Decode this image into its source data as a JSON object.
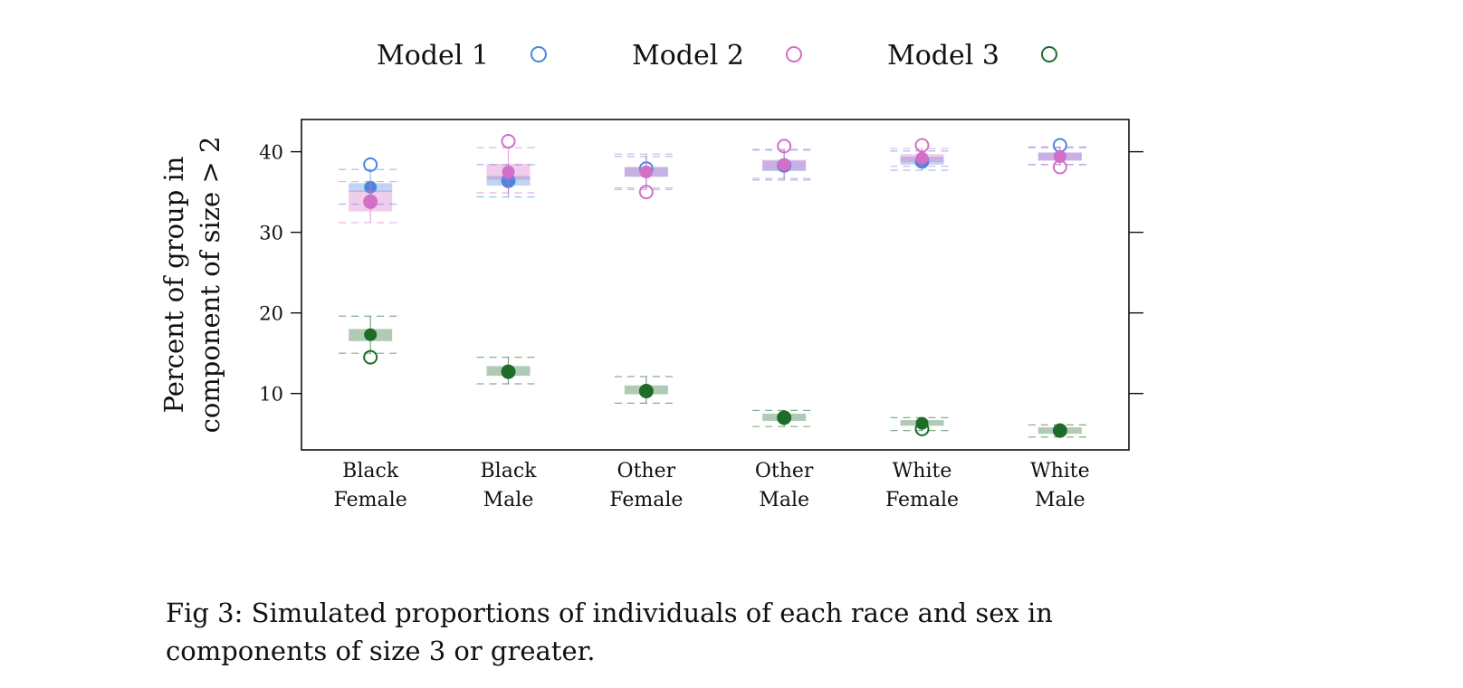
{
  "chart_data": {
    "type": "scatter",
    "ylabel_lines": [
      "Percent of group in",
      "component of size > 2"
    ],
    "xlabel": "",
    "ylim": [
      3,
      44
    ],
    "yticks": [
      10,
      20,
      30,
      40
    ],
    "grid": false,
    "legend_position": "top",
    "categories": [
      [
        "Black",
        "Female"
      ],
      [
        "Black",
        "Male"
      ],
      [
        "Other",
        "Female"
      ],
      [
        "Other",
        "Male"
      ],
      [
        "White",
        "Female"
      ],
      [
        "White",
        "Male"
      ]
    ],
    "series": [
      {
        "name": "Model 1",
        "color": "#4a86e0",
        "observed": [
          38.4,
          36.4,
          37.9,
          38.3,
          38.8,
          40.8
        ],
        "simulated_mean": [
          35.6,
          36.4,
          37.5,
          38.3,
          38.9,
          39.4
        ],
        "box_low": [
          35.0,
          35.8,
          36.9,
          37.6,
          38.4,
          38.9
        ],
        "box_high": [
          36.1,
          37.0,
          38.1,
          38.9,
          39.4,
          39.9
        ],
        "ci_low": [
          33.5,
          34.4,
          35.5,
          36.5,
          37.7,
          38.4
        ],
        "ci_high": [
          37.8,
          38.4,
          39.4,
          40.2,
          40.1,
          40.5
        ]
      },
      {
        "name": "Model 2",
        "color": "#d36fc6",
        "observed": [
          33.8,
          41.3,
          35.0,
          40.7,
          40.8,
          38.1
        ],
        "simulated_mean": [
          33.8,
          37.5,
          37.5,
          38.4,
          39.2,
          39.4
        ],
        "box_low": [
          32.6,
          36.5,
          36.9,
          37.7,
          38.7,
          38.9
        ],
        "box_high": [
          35.2,
          38.5,
          38.1,
          39.0,
          39.7,
          39.9
        ],
        "ci_low": [
          31.2,
          34.9,
          35.3,
          36.7,
          38.2,
          38.4
        ],
        "ci_high": [
          36.3,
          40.5,
          39.7,
          40.3,
          40.4,
          40.6
        ]
      },
      {
        "name": "Model 3",
        "color": "#1e6b2a",
        "observed": [
          14.5,
          12.7,
          10.3,
          7.0,
          5.6,
          5.4
        ],
        "simulated_mean": [
          17.3,
          12.7,
          10.4,
          7.0,
          6.3,
          5.4
        ],
        "box_low": [
          16.5,
          12.2,
          9.9,
          6.6,
          6.0,
          5.0
        ],
        "box_high": [
          18.0,
          13.4,
          11.0,
          7.5,
          6.7,
          5.8
        ],
        "ci_low": [
          15.0,
          11.2,
          8.8,
          5.9,
          5.4,
          4.6
        ],
        "ci_high": [
          19.6,
          14.5,
          12.1,
          7.9,
          7.0,
          6.1
        ]
      }
    ]
  },
  "caption": "Fig 3:  Simulated proportions of individuals of each race and sex in components of size 3 or greater."
}
